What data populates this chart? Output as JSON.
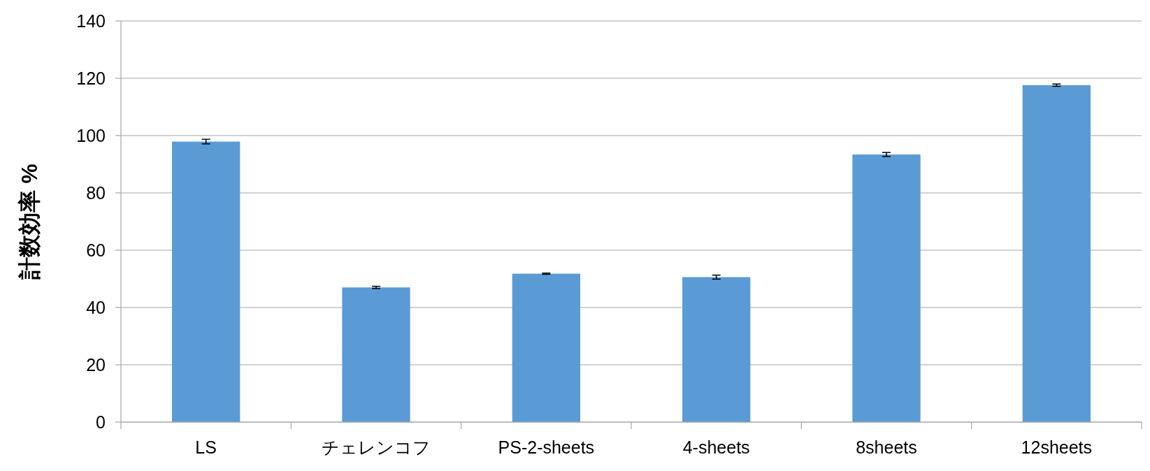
{
  "chart_data": {
    "type": "bar",
    "ylabel": "計数効率 %",
    "categories": [
      "LS",
      "チェレンコフ",
      "PS-2-sheets",
      "4-sheets",
      "8sheets",
      "12sheets"
    ],
    "values": [
      97.9,
      47.0,
      51.8,
      50.6,
      93.4,
      117.6
    ],
    "errors": [
      0.8,
      0.4,
      0.2,
      0.7,
      0.7,
      0.4
    ],
    "color": "#5b9bd5",
    "ylim": [
      0,
      140
    ],
    "yticks": [
      0,
      20,
      40,
      60,
      80,
      100,
      120,
      140
    ],
    "grid": "y"
  }
}
